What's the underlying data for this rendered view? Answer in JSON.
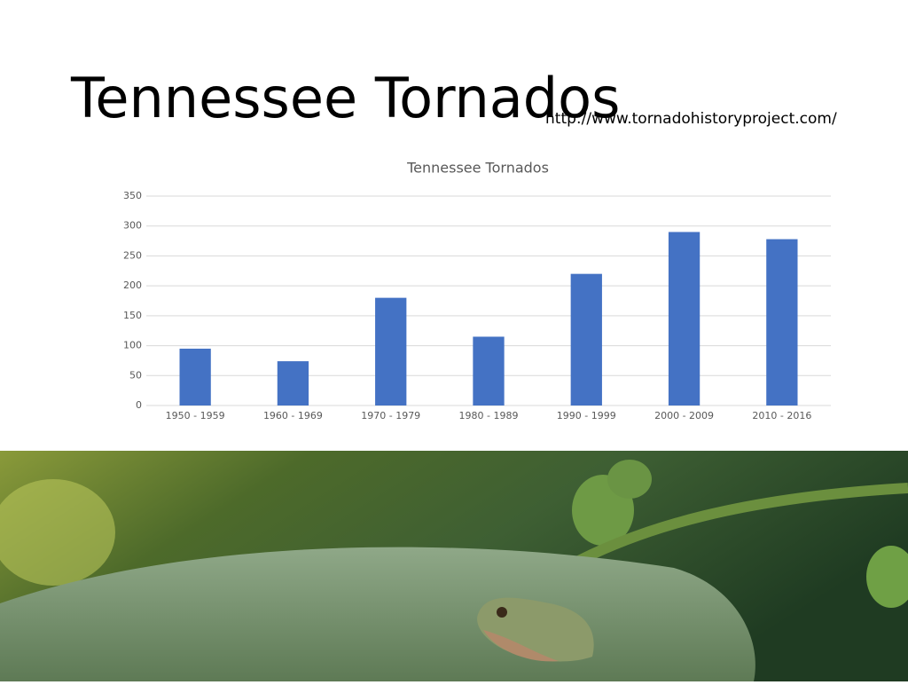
{
  "slide": {
    "title": "Tennessee Tornados",
    "source": "http://www.tornadohistoryproject.com/"
  },
  "chart_data": {
    "type": "bar",
    "title": "Tennessee Tornados",
    "categories": [
      "1950 - 1959",
      "1960 - 1969",
      "1970 - 1979",
      "1980 - 1989",
      "1990 - 1999",
      "2000 - 2009",
      "2010 - 2016"
    ],
    "values": [
      95,
      74,
      180,
      115,
      220,
      290,
      278
    ],
    "color": "#4472c4",
    "ylim": [
      0,
      350
    ],
    "yticks": [
      0,
      50,
      100,
      150,
      200,
      250,
      300,
      350
    ],
    "grid": true
  }
}
